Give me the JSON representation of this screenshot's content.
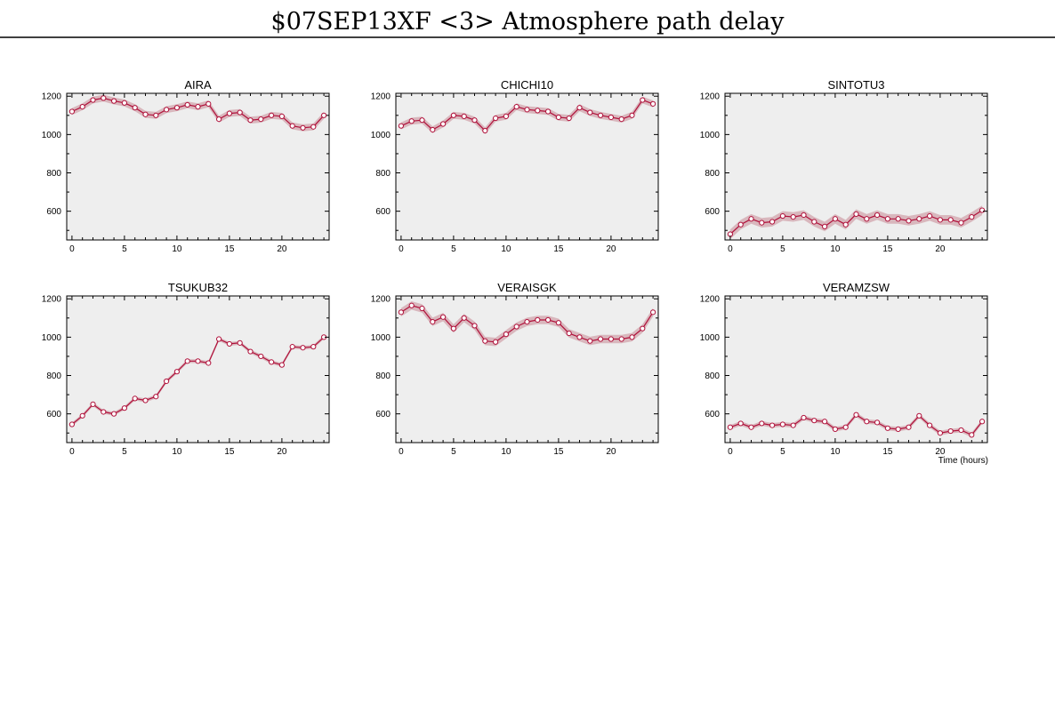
{
  "header": {
    "title": "$07SEP13XF <3>  Atmosphere path delay"
  },
  "colors": {
    "plot_bg": "#eeeeee",
    "line": "#b0103a",
    "band": "#c98a96",
    "marker_fill": "#ffffff"
  },
  "chart_data": [
    {
      "type": "line",
      "title": "AIRA",
      "xlim": [
        -0.5,
        24.5
      ],
      "ylim": [
        450,
        1215
      ],
      "xticks": [
        0,
        5,
        10,
        15,
        20
      ],
      "yticks": [
        600,
        800,
        1000,
        1200
      ],
      "xlabel": "",
      "x": [
        0,
        1,
        2,
        3,
        4,
        5,
        6,
        7,
        8,
        9,
        10,
        11,
        12,
        13,
        14,
        15,
        16,
        17,
        18,
        19,
        20,
        21,
        22,
        23,
        24
      ],
      "y": [
        1120,
        1145,
        1180,
        1190,
        1175,
        1165,
        1140,
        1105,
        1100,
        1130,
        1140,
        1155,
        1145,
        1160,
        1080,
        1110,
        1115,
        1075,
        1080,
        1100,
        1095,
        1045,
        1035,
        1040,
        1100
      ],
      "band": 18
    },
    {
      "type": "line",
      "title": "CHICHI10",
      "xlim": [
        -0.5,
        24.5
      ],
      "ylim": [
        450,
        1215
      ],
      "xticks": [
        0,
        5,
        10,
        15,
        20
      ],
      "yticks": [
        600,
        800,
        1000,
        1200
      ],
      "xlabel": "",
      "x": [
        0,
        1,
        2,
        3,
        4,
        5,
        6,
        7,
        8,
        9,
        10,
        11,
        12,
        13,
        14,
        15,
        16,
        17,
        18,
        19,
        20,
        21,
        22,
        23,
        24
      ],
      "y": [
        1045,
        1070,
        1075,
        1025,
        1055,
        1100,
        1095,
        1075,
        1020,
        1085,
        1095,
        1145,
        1130,
        1125,
        1120,
        1090,
        1085,
        1140,
        1115,
        1100,
        1090,
        1080,
        1100,
        1180,
        1160
      ],
      "band": 18
    },
    {
      "type": "line",
      "title": "SINTOTU3",
      "xlim": [
        -0.5,
        24.5
      ],
      "ylim": [
        450,
        1215
      ],
      "xticks": [
        0,
        5,
        10,
        15,
        20
      ],
      "yticks": [
        600,
        800,
        1000,
        1200
      ],
      "xlabel": "",
      "x": [
        0,
        1,
        2,
        3,
        4,
        5,
        6,
        7,
        8,
        9,
        10,
        11,
        12,
        13,
        14,
        15,
        16,
        17,
        18,
        19,
        20,
        21,
        22,
        23,
        24
      ],
      "y": [
        480,
        530,
        560,
        540,
        545,
        575,
        570,
        580,
        545,
        520,
        560,
        530,
        585,
        560,
        580,
        560,
        560,
        550,
        560,
        575,
        555,
        555,
        540,
        570,
        605
      ],
      "band": 25
    },
    {
      "type": "line",
      "title": "TSUKUB32",
      "xlim": [
        -0.5,
        24.5
      ],
      "ylim": [
        450,
        1215
      ],
      "xticks": [
        0,
        5,
        10,
        15,
        20
      ],
      "yticks": [
        600,
        800,
        1000,
        1200
      ],
      "xlabel": "",
      "x": [
        0,
        1,
        2,
        3,
        4,
        5,
        6,
        7,
        8,
        9,
        10,
        11,
        12,
        13,
        14,
        15,
        16,
        17,
        18,
        19,
        20,
        21,
        22,
        23,
        24
      ],
      "y": [
        545,
        590,
        650,
        610,
        600,
        630,
        680,
        670,
        690,
        770,
        820,
        875,
        875,
        865,
        990,
        965,
        970,
        925,
        900,
        870,
        855,
        950,
        945,
        950,
        1000
      ],
      "band": 10
    },
    {
      "type": "line",
      "title": "VERAISGK",
      "xlim": [
        -0.5,
        24.5
      ],
      "ylim": [
        450,
        1215
      ],
      "xticks": [
        0,
        5,
        10,
        15,
        20
      ],
      "yticks": [
        600,
        800,
        1000,
        1200
      ],
      "xlabel": "",
      "x": [
        0,
        1,
        2,
        3,
        4,
        5,
        6,
        7,
        8,
        9,
        10,
        11,
        12,
        13,
        14,
        15,
        16,
        17,
        18,
        19,
        20,
        21,
        22,
        23,
        24
      ],
      "y": [
        1130,
        1165,
        1150,
        1080,
        1105,
        1045,
        1100,
        1060,
        980,
        975,
        1015,
        1055,
        1080,
        1090,
        1090,
        1075,
        1020,
        1000,
        980,
        990,
        990,
        990,
        1000,
        1045,
        1130
      ],
      "band": 22
    },
    {
      "type": "line",
      "title": "VERAMZSW",
      "xlim": [
        -0.5,
        24.5
      ],
      "ylim": [
        450,
        1215
      ],
      "xticks": [
        0,
        5,
        10,
        15,
        20
      ],
      "yticks": [
        600,
        800,
        1000,
        1200
      ],
      "xlabel": "Time (hours)",
      "x": [
        0,
        1,
        2,
        3,
        4,
        5,
        6,
        7,
        8,
        9,
        10,
        11,
        12,
        13,
        14,
        15,
        16,
        17,
        18,
        19,
        20,
        21,
        22,
        23,
        24
      ],
      "y": [
        530,
        550,
        530,
        550,
        540,
        545,
        540,
        580,
        565,
        560,
        520,
        530,
        595,
        560,
        555,
        525,
        520,
        530,
        590,
        540,
        500,
        510,
        515,
        490,
        560
      ],
      "band": 12
    }
  ]
}
